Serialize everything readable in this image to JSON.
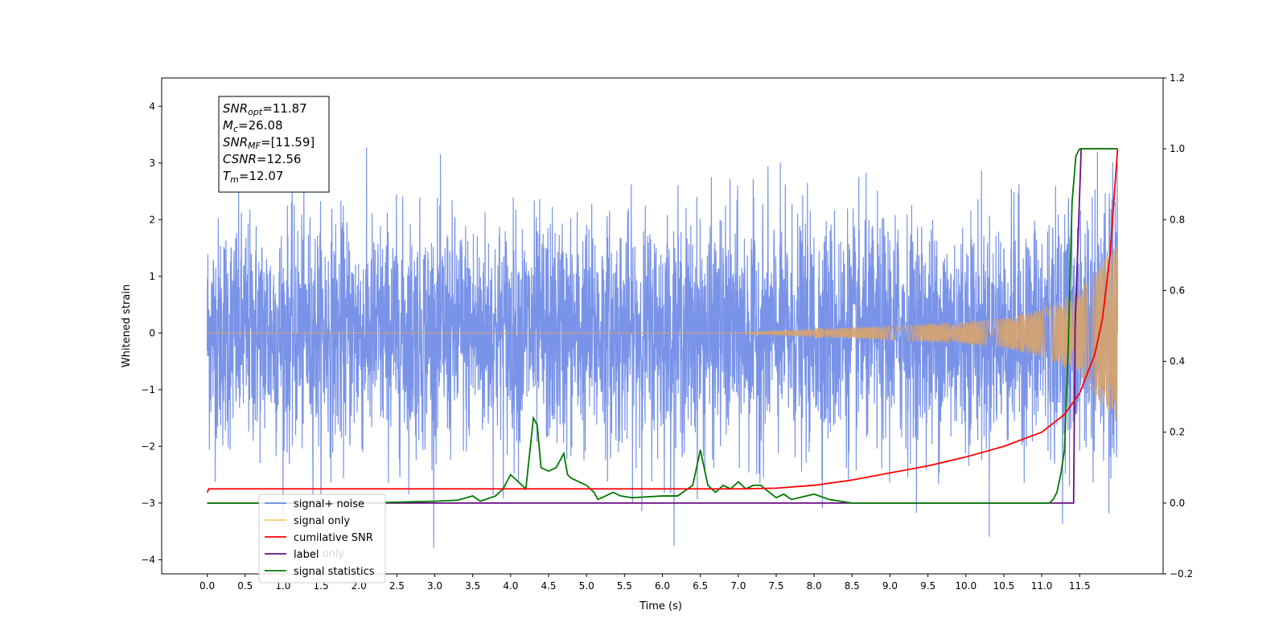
{
  "chart_data": {
    "type": "line",
    "xlabel": "Time (s)",
    "ylabel": "Whitened strain",
    "xlim": [
      -0.6,
      12.6
    ],
    "ylim": [
      -4.25,
      4.5
    ],
    "ylim_right": [
      -0.2,
      1.2
    ],
    "x_ticks": [
      "0.0",
      "0.5",
      "1.0",
      "1.5",
      "2.0",
      "2.5",
      "3.0",
      "3.5",
      "4.0",
      "4.5",
      "5.0",
      "5.5",
      "6.0",
      "6.5",
      "7.0",
      "7.5",
      "8.0",
      "8.5",
      "9.0",
      "9.5",
      "10.0",
      "10.5",
      "11.0",
      "11.5"
    ],
    "y_ticks": [
      "4",
      "3",
      "2",
      "1",
      "0",
      "−1",
      "−2",
      "−3",
      "−4"
    ],
    "y_ticks_right": [
      "1.2",
      "1.0",
      "0.8",
      "0.6",
      "0.4",
      "0.2",
      "0.0",
      "−0.2"
    ],
    "info_box": {
      "snr_opt": {
        "base": "SNR",
        "sub": "opt",
        "value": "=11.87"
      },
      "mc": {
        "base": "M",
        "sub": "c",
        "value": "=26.08"
      },
      "snr_mf": {
        "base": "SNR",
        "sub": "MF",
        "value": "=[11.59]"
      },
      "csnr": {
        "base": "CSNR",
        "sub": "",
        "value": "=12.56"
      },
      "tm": {
        "base": "T",
        "sub": "m",
        "value": "=12.07"
      }
    },
    "legend": {
      "position": "lower-left",
      "entries": [
        {
          "label": "signal+ noise",
          "color": "#6a87e6"
        },
        {
          "label": "signal only",
          "color": "#ffc66a"
        },
        {
          "label": "cumilative SNR",
          "color": "#ff0000"
        },
        {
          "label": "label",
          "color": "#6a0d83"
        },
        {
          "label": "signal statistics",
          "color": "#007a00"
        }
      ],
      "overlapped_hidden_text": "label only"
    },
    "series": [
      {
        "name": "signal+ noise",
        "axis": "left",
        "color": "#6a87e6",
        "description_x_range": [
          0.0,
          12.0
        ],
        "noise_amplitude_range": [
          -3.8,
          4.1
        ]
      },
      {
        "name": "signal only",
        "axis": "left",
        "color": "#d9a46b",
        "envelope": {
          "x": [
            0.0,
            7.0,
            8.0,
            9.0,
            10.0,
            10.5,
            11.0,
            11.5,
            12.0
          ],
          "amp": [
            0.0,
            0.0,
            0.08,
            0.12,
            0.2,
            0.26,
            0.42,
            0.75,
            1.6
          ]
        }
      },
      {
        "name": "cumilative SNR",
        "axis": "right",
        "color": "#ff0000",
        "x": [
          0.0,
          0.02,
          2.0,
          4.0,
          6.0,
          7.0,
          7.5,
          8.0,
          8.5,
          9.0,
          9.5,
          10.0,
          10.5,
          11.0,
          11.3,
          11.5,
          11.7,
          11.8,
          11.9,
          12.0
        ],
        "y": [
          0.03,
          0.04,
          0.04,
          0.04,
          0.04,
          0.04,
          0.042,
          0.05,
          0.065,
          0.085,
          0.105,
          0.13,
          0.16,
          0.2,
          0.25,
          0.31,
          0.42,
          0.52,
          0.7,
          1.0
        ]
      },
      {
        "name": "label",
        "axis": "right",
        "color": "#6a0d83",
        "x": [
          0.0,
          11.42,
          11.44,
          11.52,
          12.0
        ],
        "y": [
          0.0,
          0.0,
          0.5,
          1.0,
          1.0
        ]
      },
      {
        "name": "signal statistics",
        "axis": "right",
        "color": "#007a00",
        "x": [
          0.0,
          1.0,
          2.0,
          3.0,
          3.3,
          3.5,
          3.6,
          3.8,
          3.9,
          4.0,
          4.2,
          4.3,
          4.35,
          4.4,
          4.5,
          4.6,
          4.7,
          4.75,
          4.8,
          5.0,
          5.1,
          5.15,
          5.25,
          5.35,
          5.45,
          5.6,
          6.0,
          6.2,
          6.4,
          6.5,
          6.6,
          6.7,
          6.8,
          6.9,
          7.0,
          7.1,
          7.2,
          7.3,
          7.35,
          7.5,
          7.6,
          7.7,
          7.9,
          8.0,
          8.2,
          8.5,
          9.0,
          9.5,
          10.0,
          10.5,
          11.0,
          11.1,
          11.15,
          11.2,
          11.25,
          11.3,
          11.35,
          11.4,
          11.45,
          11.5,
          11.6,
          12.0
        ],
        "y": [
          0.0,
          0.0,
          0.0,
          0.005,
          0.008,
          0.02,
          0.005,
          0.02,
          0.04,
          0.08,
          0.04,
          0.24,
          0.22,
          0.1,
          0.09,
          0.1,
          0.14,
          0.08,
          0.07,
          0.05,
          0.03,
          0.01,
          0.02,
          0.03,
          0.02,
          0.015,
          0.02,
          0.02,
          0.05,
          0.15,
          0.05,
          0.03,
          0.05,
          0.04,
          0.06,
          0.04,
          0.05,
          0.05,
          0.04,
          0.015,
          0.025,
          0.01,
          0.02,
          0.025,
          0.01,
          0.0,
          0.0,
          0.0,
          0.0,
          0.0,
          0.0,
          0.0,
          0.01,
          0.03,
          0.08,
          0.15,
          0.45,
          0.85,
          0.98,
          1.0,
          1.0,
          1.0
        ]
      }
    ]
  }
}
